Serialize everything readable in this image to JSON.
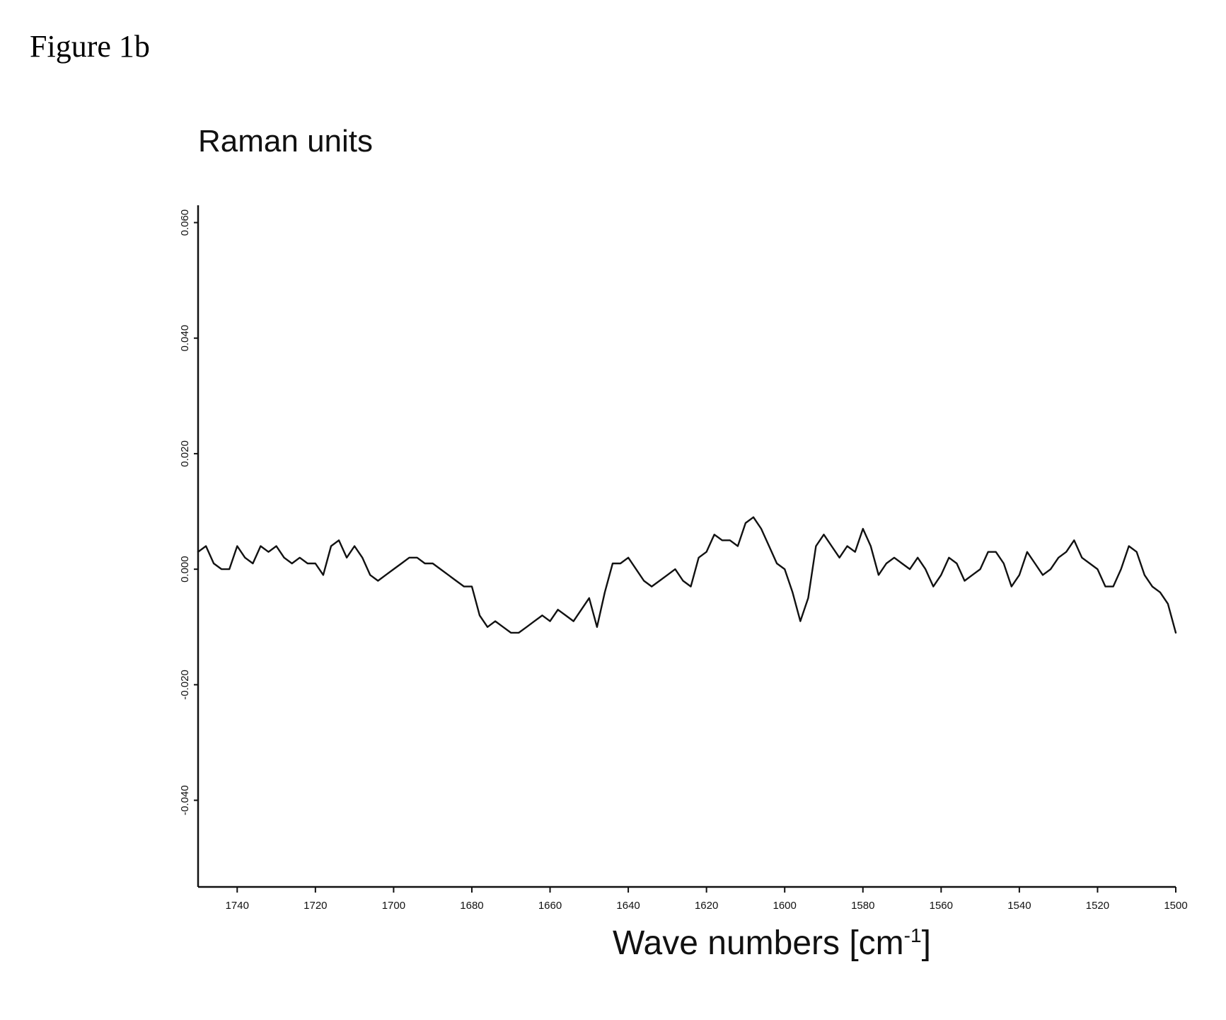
{
  "figure_label": "Figure 1b",
  "chart_data": {
    "type": "line",
    "ylabel": "Raman units",
    "xlabel_main": "Wave numbers [cm",
    "xlabel_sup": "-1",
    "xlabel_end": "]",
    "xlim": [
      1750,
      1500
    ],
    "ylim": [
      -0.055,
      0.063
    ],
    "x_ticks": [
      {
        "value": 1740,
        "label": "1740"
      },
      {
        "value": 1720,
        "label": "1720"
      },
      {
        "value": 1700,
        "label": "1700"
      },
      {
        "value": 1680,
        "label": "1680"
      },
      {
        "value": 1660,
        "label": "1660"
      },
      {
        "value": 1640,
        "label": "1640"
      },
      {
        "value": 1620,
        "label": "1620"
      },
      {
        "value": 1600,
        "label": "1600"
      },
      {
        "value": 1580,
        "label": "1580"
      },
      {
        "value": 1560,
        "label": "1560"
      },
      {
        "value": 1540,
        "label": "1540"
      },
      {
        "value": 1520,
        "label": "1520"
      },
      {
        "value": 1500,
        "label": "1500"
      }
    ],
    "y_ticks": [
      {
        "value": 0.06,
        "label": "0.060"
      },
      {
        "value": 0.04,
        "label": "0.040"
      },
      {
        "value": 0.02,
        "label": "0.020"
      },
      {
        "value": 0.0,
        "label": "0.000"
      },
      {
        "value": -0.02,
        "label": "-0.020"
      },
      {
        "value": -0.04,
        "label": "-0.040"
      }
    ],
    "series": [
      {
        "x": [
          1750,
          1748,
          1746,
          1744,
          1742,
          1740,
          1738,
          1736,
          1734,
          1732,
          1730,
          1728,
          1726,
          1724,
          1722,
          1720,
          1718,
          1716,
          1714,
          1712,
          1710,
          1708,
          1706,
          1704,
          1702,
          1700,
          1698,
          1696,
          1694,
          1692,
          1690,
          1688,
          1686,
          1684,
          1682,
          1680,
          1678,
          1676,
          1674,
          1672,
          1670,
          1668,
          1666,
          1664,
          1662,
          1660,
          1658,
          1656,
          1654,
          1652,
          1650,
          1648,
          1646,
          1644,
          1642,
          1640,
          1638,
          1636,
          1634,
          1632,
          1630,
          1628,
          1626,
          1624,
          1622,
          1620,
          1618,
          1616,
          1614,
          1612,
          1610,
          1608,
          1606,
          1604,
          1602,
          1600,
          1598,
          1596,
          1594,
          1592,
          1590,
          1588,
          1586,
          1584,
          1582,
          1580,
          1578,
          1576,
          1574,
          1572,
          1570,
          1568,
          1566,
          1564,
          1562,
          1560,
          1558,
          1556,
          1554,
          1552,
          1550,
          1548,
          1546,
          1544,
          1542,
          1540,
          1538,
          1536,
          1534,
          1532,
          1530,
          1528,
          1526,
          1524,
          1522,
          1520,
          1518,
          1516,
          1514,
          1512,
          1510,
          1508,
          1506,
          1504,
          1502,
          1500
        ],
        "y": [
          0.003,
          0.004,
          0.001,
          0.0,
          0.0,
          0.004,
          0.002,
          0.001,
          0.004,
          0.003,
          0.004,
          0.002,
          0.001,
          0.002,
          0.001,
          0.001,
          -0.001,
          0.004,
          0.005,
          0.002,
          0.004,
          0.002,
          -0.001,
          -0.002,
          -0.001,
          0.0,
          0.001,
          0.002,
          0.002,
          0.001,
          0.001,
          0.0,
          -0.001,
          -0.002,
          -0.003,
          -0.003,
          -0.008,
          -0.01,
          -0.009,
          -0.01,
          -0.011,
          -0.011,
          -0.01,
          -0.009,
          -0.008,
          -0.009,
          -0.007,
          -0.008,
          -0.009,
          -0.007,
          -0.005,
          -0.01,
          -0.004,
          0.001,
          0.001,
          0.002,
          0.0,
          -0.002,
          -0.003,
          -0.002,
          -0.001,
          0.0,
          -0.002,
          -0.003,
          0.002,
          0.003,
          0.006,
          0.005,
          0.005,
          0.004,
          0.008,
          0.009,
          0.007,
          0.004,
          0.001,
          0.0,
          -0.004,
          -0.009,
          -0.005,
          0.004,
          0.006,
          0.004,
          0.002,
          0.004,
          0.003,
          0.007,
          0.004,
          -0.001,
          0.001,
          0.002,
          0.001,
          0.0,
          0.002,
          0.0,
          -0.003,
          -0.001,
          0.002,
          0.001,
          -0.002,
          -0.001,
          0.0,
          0.003,
          0.003,
          0.001,
          -0.003,
          -0.001,
          0.003,
          0.001,
          -0.001,
          0.0,
          0.002,
          0.003,
          0.005,
          0.002,
          0.001,
          0.0,
          -0.003,
          -0.003,
          0.0,
          0.004,
          0.003,
          -0.001,
          -0.003,
          -0.004,
          -0.006,
          -0.011
        ]
      }
    ],
    "grid": false,
    "line_color": "#111111"
  }
}
